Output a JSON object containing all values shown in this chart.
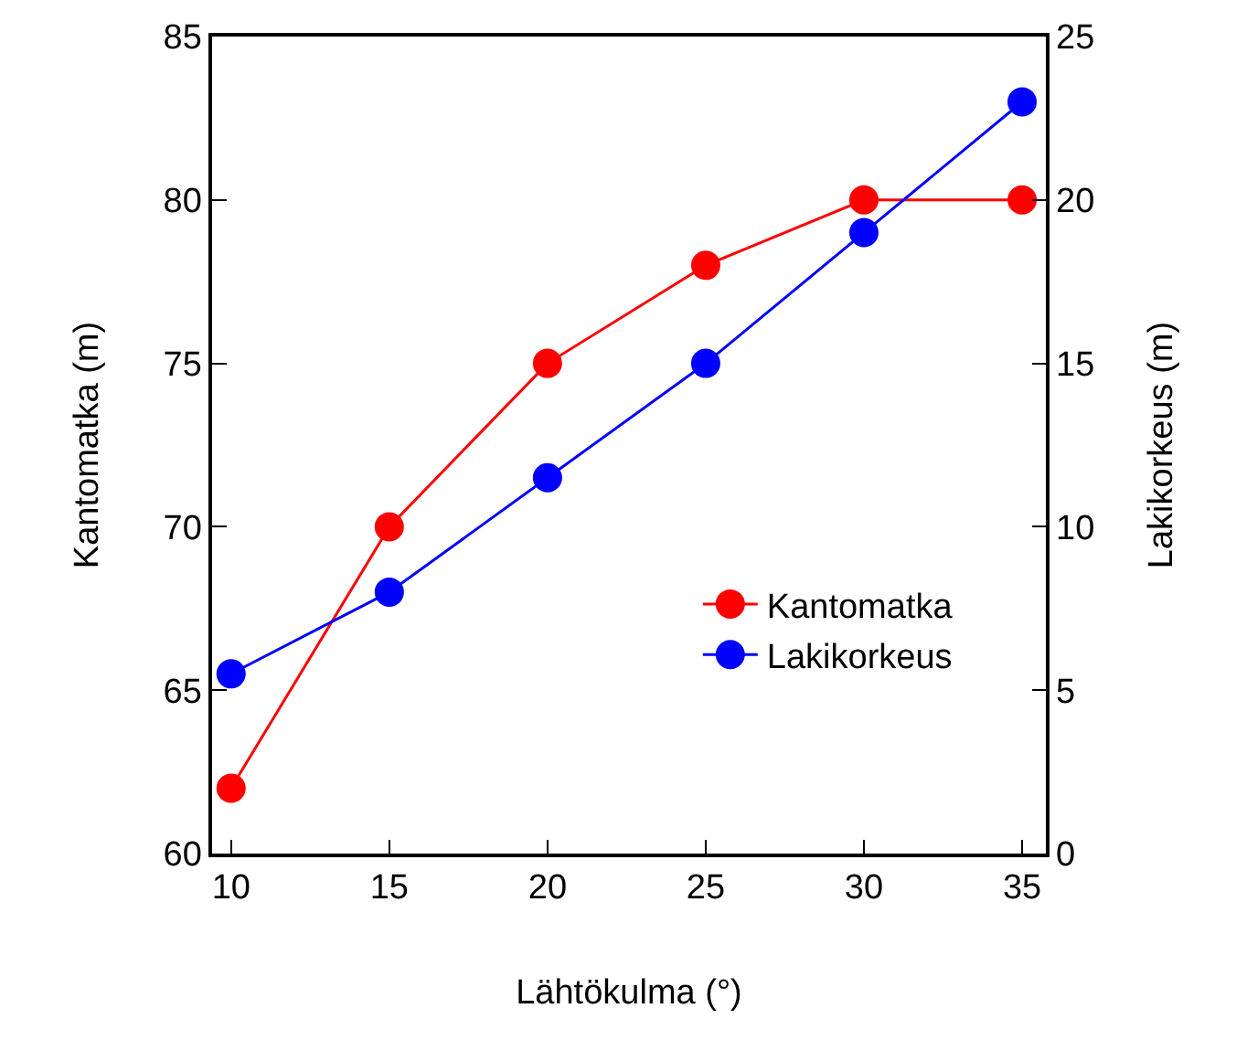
{
  "chart_data": {
    "type": "line",
    "xlabel": "Lähtökulma (°)",
    "ylabel": "Kantomatka (m)",
    "y2label": "Lakikorkeus (m)",
    "x": [
      10,
      15,
      20,
      25,
      30,
      35
    ],
    "series": [
      {
        "name": "Kantomatka",
        "color": "#ff0000",
        "values": [
          62,
          70,
          75,
          78,
          80,
          80
        ]
      },
      {
        "name": "Lakikorkeus",
        "color": "#0000ff",
        "values": [
          5.5,
          8,
          11.5,
          15,
          19,
          23
        ],
        "axis": "y2"
      }
    ],
    "xlim": [
      9.4,
      35.75
    ],
    "xticks": [
      10,
      15,
      20,
      25,
      30,
      35
    ],
    "ylim": [
      60,
      85
    ],
    "yticks": [
      60,
      65,
      70,
      75,
      80,
      85
    ],
    "y2lim": [
      0,
      25
    ],
    "y2ticks": [
      0,
      5,
      10,
      15,
      20,
      25
    ],
    "marker": "circle",
    "line_style": "solid",
    "legend": "bottom right"
  }
}
